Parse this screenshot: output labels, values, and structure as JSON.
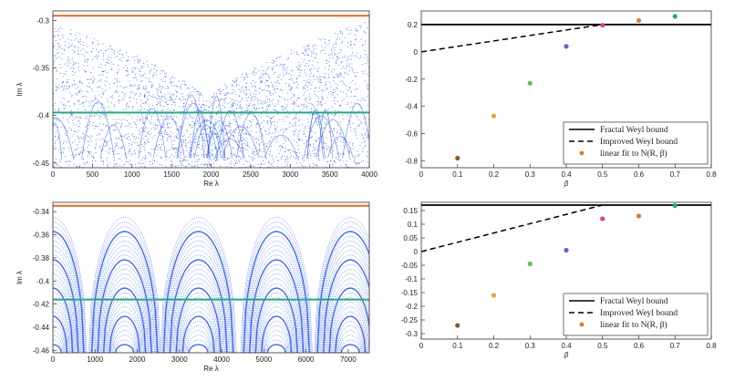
{
  "chart_data": [
    {
      "type": "scatter",
      "xlabel": "Re λ",
      "ylabel": "Im λ",
      "xlim": [
        0,
        4000
      ],
      "ylim": [
        -0.455,
        -0.29
      ],
      "xticks": [
        "0",
        "500",
        "1000",
        "1500",
        "2000",
        "2500",
        "3000",
        "3500",
        "4000"
      ],
      "yticks": [
        "-0.3",
        "-0.35",
        "-0.4",
        "-0.45"
      ],
      "series": [
        {
          "kind": "eigenvalue-cloud",
          "color": "#1f4ff0",
          "description_values": {
            "center_x": 1950,
            "envelope_top_edges": -0.3,
            "envelope_top_center": -0.385
          }
        },
        {
          "kind": "hline",
          "y": -0.295,
          "color": "#e8692d"
        },
        {
          "kind": "hline",
          "y": -0.397,
          "color": "#27a882"
        }
      ]
    },
    {
      "type": "scatter",
      "xlabel": "β",
      "ylabel": "",
      "xlim": [
        0,
        0.8
      ],
      "ylim": [
        -0.85,
        0.3
      ],
      "xticks": [
        "0",
        "0.1",
        "0.2",
        "0.3",
        "0.4",
        "0.5",
        "0.6",
        "0.7",
        "0.8"
      ],
      "yticks": [
        "0.2",
        "0",
        "-0.2",
        "-0.4",
        "-0.6",
        "-0.8"
      ],
      "fractal_bound": 0.2,
      "improved_line": [
        [
          0,
          0
        ],
        [
          0.5,
          0.2
        ]
      ],
      "points": [
        {
          "x": 0.1,
          "y": -0.78,
          "color": "#8a5a2b"
        },
        {
          "x": 0.2,
          "y": -0.47,
          "color": "#e8a23a"
        },
        {
          "x": 0.3,
          "y": -0.23,
          "color": "#58c24a"
        },
        {
          "x": 0.4,
          "y": 0.04,
          "color": "#6a5fd6"
        },
        {
          "x": 0.5,
          "y": 0.195,
          "color": "#e23c9b"
        },
        {
          "x": 0.6,
          "y": 0.23,
          "color": "#e07b2c"
        },
        {
          "x": 0.7,
          "y": 0.26,
          "color": "#27a882"
        }
      ],
      "legend": {
        "position": "bottom-right",
        "entries": [
          "Fractal Weyl bound",
          "Improved Weyl bound",
          "linear fit to N(R, β)"
        ]
      }
    },
    {
      "type": "scatter",
      "xlabel": "Re λ",
      "ylabel": "Im λ",
      "xlim": [
        0,
        7500
      ],
      "ylim": [
        -0.462,
        -0.332
      ],
      "xticks": [
        "0",
        "1000",
        "2000",
        "3000",
        "4000",
        "5000",
        "6000",
        "7000"
      ],
      "yticks": [
        "-0.34",
        "-0.36",
        "-0.38",
        "-0.4",
        "-0.42",
        "-0.44",
        "-0.46"
      ],
      "series": [
        {
          "kind": "eigenvalue-arcs",
          "color": "#1f4ff0"
        },
        {
          "kind": "hline",
          "y": -0.335,
          "color": "#e8692d"
        },
        {
          "kind": "hline",
          "y": -0.416,
          "color": "#27a882"
        }
      ]
    },
    {
      "type": "scatter",
      "xlabel": "β",
      "ylabel": "",
      "xlim": [
        0,
        0.8
      ],
      "ylim": [
        -0.32,
        0.18
      ],
      "xticks": [
        "0",
        "0.1",
        "0.2",
        "0.3",
        "0.4",
        "0.5",
        "0.6",
        "0.7",
        "0.8"
      ],
      "yticks": [
        "0.15",
        "0.1",
        "0.05",
        "0",
        "-0.05",
        "-0.1",
        "-0.15",
        "-0.2",
        "-0.25",
        "-0.3"
      ],
      "fractal_bound": 0.17,
      "improved_line": [
        [
          0,
          0
        ],
        [
          0.5,
          0.17
        ]
      ],
      "points": [
        {
          "x": 0.1,
          "y": -0.27,
          "color": "#8a5a2b"
        },
        {
          "x": 0.2,
          "y": -0.16,
          "color": "#e8a23a"
        },
        {
          "x": 0.3,
          "y": -0.045,
          "color": "#58c24a"
        },
        {
          "x": 0.4,
          "y": 0.005,
          "color": "#6a5fd6"
        },
        {
          "x": 0.5,
          "y": 0.12,
          "color": "#e23c9b"
        },
        {
          "x": 0.6,
          "y": 0.13,
          "color": "#e07b2c"
        },
        {
          "x": 0.7,
          "y": 0.168,
          "color": "#27a882"
        }
      ],
      "legend": {
        "position": "bottom-right",
        "entries": [
          "Fractal Weyl bound",
          "Improved Weyl bound",
          "linear fit to N(R, β)"
        ]
      }
    }
  ]
}
